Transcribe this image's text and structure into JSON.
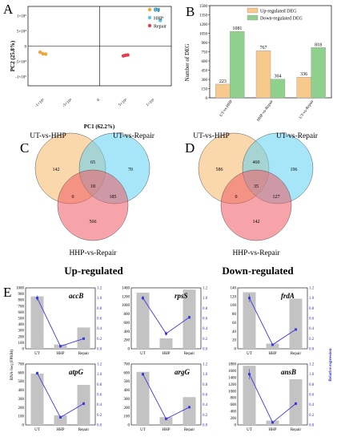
{
  "panels": {
    "A": "A",
    "B": "B",
    "C": "C",
    "D": "D",
    "E": "E"
  },
  "panel_a": {
    "xlabel": "PC1 (62.2%)",
    "ylabel": "PC2 (25.8%)",
    "xticks": [
      "-1×10⁵",
      "-5×10⁴",
      "0",
      "5×10⁴",
      "1×10⁵"
    ],
    "yticks": [
      "1×10⁵",
      "5×10⁴",
      "0",
      "-5×10⁴",
      "-1×10⁵"
    ],
    "legend": [
      {
        "label": "UT",
        "color": "#f2a53a"
      },
      {
        "label": "HHP",
        "color": "#4fc8ec"
      },
      {
        "label": "Repair",
        "color": "#e43d4d"
      }
    ]
  },
  "chart_data": [
    {
      "type": "scatter",
      "title": "",
      "xlabel": "PC1 (62.2%)",
      "ylabel": "PC2 (25.8%)",
      "xlim": [
        -130000,
        130000
      ],
      "ylim": [
        -130000,
        130000
      ],
      "series": [
        {
          "name": "UT",
          "color": "#f2a53a",
          "points": [
            [
              -108000,
              -20000
            ],
            [
              -103000,
              -25000
            ],
            [
              -98000,
              -26000
            ]
          ]
        },
        {
          "name": "HHP",
          "color": "#4fc8ec",
          "points": [
            [
              102000,
              121000
            ],
            [
              106000,
              118000
            ],
            [
              110000,
              84000
            ]
          ]
        },
        {
          "name": "Repair",
          "color": "#e43d4d",
          "points": [
            [
              43000,
              -32000
            ],
            [
              47000,
              -30000
            ],
            [
              51000,
              -29000
            ]
          ]
        }
      ]
    },
    {
      "type": "bar",
      "ylabel": "Number of DEG",
      "ylim": [
        0,
        1500
      ],
      "yticks": [
        "0",
        "150",
        "300",
        "450",
        "600",
        "750",
        "900",
        "1050",
        "1200",
        "1350",
        "1500"
      ],
      "categories": [
        "UT-vs-HHP",
        "HHP-vs-Repair",
        "UT-vs-Repair"
      ],
      "series": [
        {
          "name": "Up-regulated DEG",
          "color": "#f8c98c",
          "values": [
            223,
            767,
            336
          ]
        },
        {
          "name": "Down-regulated DEG",
          "color": "#8fd18c",
          "values": [
            1081,
            304,
            818
          ]
        }
      ]
    },
    {
      "type": "venn",
      "title": "Up-regulated",
      "sets": [
        "UT-vs-HHP",
        "UT-vs-Repair",
        "HHP-vs-Repair"
      ],
      "regions": {
        "a_only": 142,
        "b_only": 70,
        "c_only": 566,
        "ab": 65,
        "ac": 0,
        "bc": 185,
        "abc": 18
      }
    },
    {
      "type": "venn",
      "title": "Down-regulated",
      "sets": [
        "UT-vs-HHP",
        "UT-vs-Repair",
        "HHP-vs-Repair"
      ],
      "regions": {
        "a_only": 586,
        "b_only": 196,
        "c_only": 142,
        "ab": 460,
        "ac": 0,
        "bc": 127,
        "abc": 35
      }
    },
    {
      "type": "bar+line",
      "ylabel_left": "RNA-Seq (FPKM)",
      "ylabel_right": "Relative expression",
      "categories": [
        "UT",
        "HHP",
        "Repair"
      ],
      "subplots": [
        {
          "gene": "accB",
          "ylim": [
            0,
            1000
          ],
          "yticks": [
            "0",
            "100",
            "200",
            "300",
            "400",
            "500",
            "600",
            "700",
            "800",
            "900",
            "1000"
          ],
          "rlim": [
            0,
            1.2
          ],
          "rticks": [
            "0.0",
            "0.2",
            "0.4",
            "0.6",
            "0.8",
            "1.0",
            "1.2"
          ],
          "fpkm": [
            860,
            70,
            350
          ],
          "rel": [
            1.0,
            0.05,
            0.2
          ],
          "err": [
            0.05,
            0.01,
            0.02
          ]
        },
        {
          "gene": "rpsS",
          "ylim": [
            0,
            1400
          ],
          "yticks": [
            "0",
            "200",
            "400",
            "600",
            "800",
            "1000",
            "1200",
            "1400"
          ],
          "rlim": [
            0,
            1.2
          ],
          "rticks": [
            "0.0",
            "0.2",
            "0.4",
            "0.6",
            "0.8",
            "1.0",
            "1.2"
          ],
          "fpkm": [
            1290,
            240,
            1360
          ],
          "rel": [
            1.0,
            0.3,
            0.62
          ],
          "err": [
            0.04,
            0.04,
            0.03
          ]
        },
        {
          "gene": "frdA",
          "ylim": [
            0,
            140
          ],
          "yticks": [
            "0",
            "20",
            "40",
            "60",
            "80",
            "100",
            "120",
            "140"
          ],
          "rlim": [
            0,
            1.2
          ],
          "rticks": [
            "0.0",
            "0.2",
            "0.4",
            "0.6",
            "0.8",
            "1.0",
            "1.2"
          ],
          "fpkm": [
            130,
            12,
            115
          ],
          "rel": [
            1.0,
            0.08,
            0.38
          ],
          "err": [
            0.08,
            0.01,
            0.02
          ]
        },
        {
          "gene": "atpG",
          "ylim": [
            0,
            700
          ],
          "yticks": [
            "0",
            "100",
            "200",
            "300",
            "400",
            "500",
            "600",
            "700"
          ],
          "rlim": [
            0,
            1.2
          ],
          "rticks": [
            "0.0",
            "0.2",
            "0.4",
            "0.6",
            "0.8",
            "1.0",
            "1.2"
          ],
          "fpkm": [
            590,
            110,
            460
          ],
          "rel": [
            1.02,
            0.15,
            0.42
          ],
          "err": [
            0.03,
            0.02,
            0.03
          ]
        },
        {
          "gene": "argG",
          "ylim": [
            0,
            700
          ],
          "yticks": [
            "0",
            "100",
            "200",
            "300",
            "400",
            "500",
            "600",
            "700"
          ],
          "rlim": [
            0,
            1.2
          ],
          "rticks": [
            "0.0",
            "0.2",
            "0.4",
            "0.6",
            "0.8",
            "1.0",
            "1.2"
          ],
          "fpkm": [
            610,
            90,
            320
          ],
          "rel": [
            1.0,
            0.12,
            0.35
          ],
          "err": [
            0.03,
            0.02,
            0.02
          ]
        },
        {
          "gene": "ansB",
          "ylim": [
            0,
            1800
          ],
          "yticks": [
            "0",
            "200",
            "400",
            "600",
            "800",
            "1000",
            "1200",
            "1400",
            "1600",
            "1800"
          ],
          "rlim": [
            0,
            1.2
          ],
          "rticks": [
            "0.0",
            "0.2",
            "0.4",
            "0.6",
            "0.8",
            "1.0",
            "1.2"
          ],
          "fpkm": [
            1750,
            130,
            1350
          ],
          "rel": [
            1.0,
            0.05,
            0.42
          ],
          "err": [
            0.1,
            0.01,
            0.03
          ]
        }
      ]
    }
  ]
}
